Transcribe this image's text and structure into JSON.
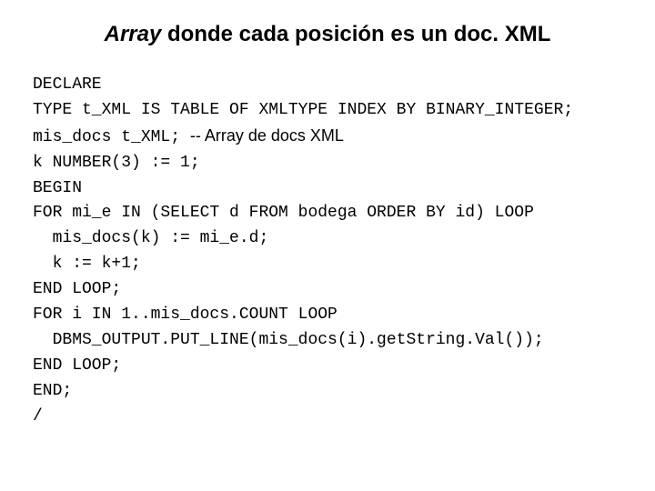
{
  "title": {
    "italic_part": "Array",
    "rest": " donde cada posición es un doc. XML",
    "fontsize_pt": 24,
    "font_weight": "bold",
    "color": "#000000"
  },
  "code": {
    "font_family": "Courier New",
    "fontsize_pt": 18,
    "color": "#000000",
    "comment_font_family": "Arial",
    "lines": [
      {
        "text": "DECLARE",
        "indent": 0
      },
      {
        "text": "TYPE t_XML IS TABLE OF XMLTYPE INDEX BY BINARY_INTEGER;",
        "indent": 0
      },
      {
        "text": "mis_docs t_XML; ",
        "comment": "-- Array de docs XML",
        "indent": 0
      },
      {
        "text": "k NUMBER(3) := 1;",
        "indent": 0
      },
      {
        "text": "BEGIN",
        "indent": 0
      },
      {
        "text": "FOR mi_e IN (SELECT d FROM bodega ORDER BY id) LOOP",
        "indent": 0
      },
      {
        "text": "mis_docs(k) := mi_e.d;",
        "indent": 1
      },
      {
        "text": "k := k+1;",
        "indent": 1
      },
      {
        "text": "END LOOP;",
        "indent": 0
      },
      {
        "text": "FOR i IN 1..mis_docs.COUNT LOOP",
        "indent": 0
      },
      {
        "text": "DBMS_OUTPUT.PUT_LINE(mis_docs(i).getString.Val());",
        "indent": 1
      },
      {
        "text": "END LOOP;",
        "indent": 0
      },
      {
        "text": "END;",
        "indent": 0
      },
      {
        "text": "/",
        "indent": 0
      }
    ],
    "indent_unit": "  "
  },
  "background_color": "#ffffff"
}
